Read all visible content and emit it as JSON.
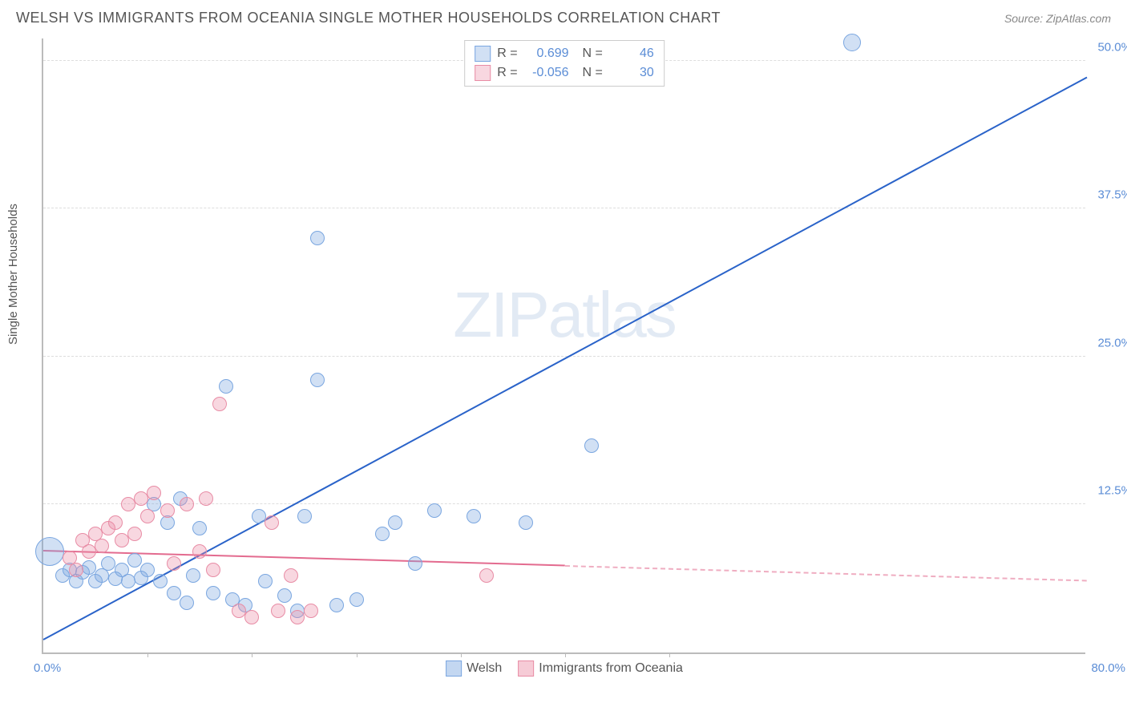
{
  "header": {
    "title": "WELSH VS IMMIGRANTS FROM OCEANIA SINGLE MOTHER HOUSEHOLDS CORRELATION CHART",
    "source": "Source: ZipAtlas.com"
  },
  "chart": {
    "type": "scatter",
    "ylabel": "Single Mother Households",
    "xlim": [
      0,
      80
    ],
    "ylim": [
      0,
      52
    ],
    "yticks": [
      {
        "value": 12.5,
        "label": "12.5%"
      },
      {
        "value": 25.0,
        "label": "25.0%"
      },
      {
        "value": 37.5,
        "label": "37.5%"
      },
      {
        "value": 50.0,
        "label": "50.0%"
      }
    ],
    "xticks": [
      8,
      16,
      24,
      32,
      40,
      48
    ],
    "x_left_label": "0.0%",
    "x_right_label": "80.0%",
    "background_color": "#ffffff",
    "grid_color": "#dddddd",
    "axis_color": "#bbbbbb",
    "watermark": "ZIPatlas",
    "series": [
      {
        "name": "Welsh",
        "color_fill": "rgba(122,166,224,0.35)",
        "color_stroke": "#7aa6e0",
        "line_color": "#2a63c9",
        "marker_radius": 9,
        "R": "0.699",
        "N": "46",
        "trend": {
          "x1": 0,
          "y1": 1.0,
          "x2": 80,
          "y2": 48.5,
          "solid_until_x": 80
        },
        "points": [
          {
            "x": 0.5,
            "y": 8.5,
            "r": 18
          },
          {
            "x": 1.5,
            "y": 6.5
          },
          {
            "x": 2.0,
            "y": 7.0
          },
          {
            "x": 2.5,
            "y": 6.0
          },
          {
            "x": 3.0,
            "y": 6.8
          },
          {
            "x": 3.5,
            "y": 7.2
          },
          {
            "x": 4.0,
            "y": 6.0
          },
          {
            "x": 4.5,
            "y": 6.5
          },
          {
            "x": 5.0,
            "y": 7.5
          },
          {
            "x": 5.5,
            "y": 6.2
          },
          {
            "x": 6.0,
            "y": 7.0
          },
          {
            "x": 6.5,
            "y": 6.0
          },
          {
            "x": 7.0,
            "y": 7.8
          },
          {
            "x": 7.5,
            "y": 6.3
          },
          {
            "x": 8.0,
            "y": 7.0
          },
          {
            "x": 8.5,
            "y": 12.5
          },
          {
            "x": 9.0,
            "y": 6.0
          },
          {
            "x": 9.5,
            "y": 11.0
          },
          {
            "x": 10.0,
            "y": 5.0
          },
          {
            "x": 10.5,
            "y": 13.0
          },
          {
            "x": 11.0,
            "y": 4.2
          },
          {
            "x": 11.5,
            "y": 6.5
          },
          {
            "x": 12.0,
            "y": 10.5
          },
          {
            "x": 13.0,
            "y": 5.0
          },
          {
            "x": 14.0,
            "y": 22.5
          },
          {
            "x": 14.5,
            "y": 4.5
          },
          {
            "x": 15.5,
            "y": 4.0
          },
          {
            "x": 16.5,
            "y": 11.5
          },
          {
            "x": 17.0,
            "y": 6.0
          },
          {
            "x": 18.5,
            "y": 4.8
          },
          {
            "x": 19.5,
            "y": 3.5
          },
          {
            "x": 20.0,
            "y": 11.5
          },
          {
            "x": 21.0,
            "y": 23.0
          },
          {
            "x": 21.0,
            "y": 35.0
          },
          {
            "x": 22.5,
            "y": 4.0
          },
          {
            "x": 24.0,
            "y": 4.5
          },
          {
            "x": 26.0,
            "y": 10.0
          },
          {
            "x": 27.0,
            "y": 11.0
          },
          {
            "x": 28.5,
            "y": 7.5
          },
          {
            "x": 30.0,
            "y": 12.0
          },
          {
            "x": 33.0,
            "y": 11.5
          },
          {
            "x": 37.0,
            "y": 11.0
          },
          {
            "x": 42.0,
            "y": 17.5
          },
          {
            "x": 62.0,
            "y": 51.5,
            "r": 11
          }
        ]
      },
      {
        "name": "Immigrants from Oceania",
        "color_fill": "rgba(235,140,165,0.35)",
        "color_stroke": "#e88ca5",
        "line_color": "#e36b8f",
        "marker_radius": 9,
        "R": "-0.056",
        "N": "30",
        "trend": {
          "x1": 0,
          "y1": 8.5,
          "x2": 80,
          "y2": 6.0,
          "solid_until_x": 40
        },
        "points": [
          {
            "x": 2.0,
            "y": 8.0
          },
          {
            "x": 2.5,
            "y": 7.0
          },
          {
            "x": 3.0,
            "y": 9.5
          },
          {
            "x": 3.5,
            "y": 8.5
          },
          {
            "x": 4.0,
            "y": 10.0
          },
          {
            "x": 4.5,
            "y": 9.0
          },
          {
            "x": 5.0,
            "y": 10.5
          },
          {
            "x": 5.5,
            "y": 11.0
          },
          {
            "x": 6.0,
            "y": 9.5
          },
          {
            "x": 6.5,
            "y": 12.5
          },
          {
            "x": 7.0,
            "y": 10.0
          },
          {
            "x": 7.5,
            "y": 13.0
          },
          {
            "x": 8.0,
            "y": 11.5
          },
          {
            "x": 8.5,
            "y": 13.5
          },
          {
            "x": 9.5,
            "y": 12.0
          },
          {
            "x": 10.0,
            "y": 7.5
          },
          {
            "x": 11.0,
            "y": 12.5
          },
          {
            "x": 12.0,
            "y": 8.5
          },
          {
            "x": 12.5,
            "y": 13.0
          },
          {
            "x": 13.0,
            "y": 7.0
          },
          {
            "x": 13.5,
            "y": 21.0
          },
          {
            "x": 15.0,
            "y": 3.5
          },
          {
            "x": 16.0,
            "y": 3.0
          },
          {
            "x": 17.5,
            "y": 11.0
          },
          {
            "x": 18.0,
            "y": 3.5
          },
          {
            "x": 19.0,
            "y": 6.5
          },
          {
            "x": 19.5,
            "y": 3.0
          },
          {
            "x": 20.5,
            "y": 3.5
          },
          {
            "x": 34.0,
            "y": 6.5
          }
        ]
      }
    ],
    "legend_bottom": [
      {
        "label": "Welsh",
        "color_fill": "rgba(122,166,224,0.45)",
        "color_stroke": "#7aa6e0"
      },
      {
        "label": "Immigrants from Oceania",
        "color_fill": "rgba(235,140,165,0.45)",
        "color_stroke": "#e88ca5"
      }
    ]
  }
}
